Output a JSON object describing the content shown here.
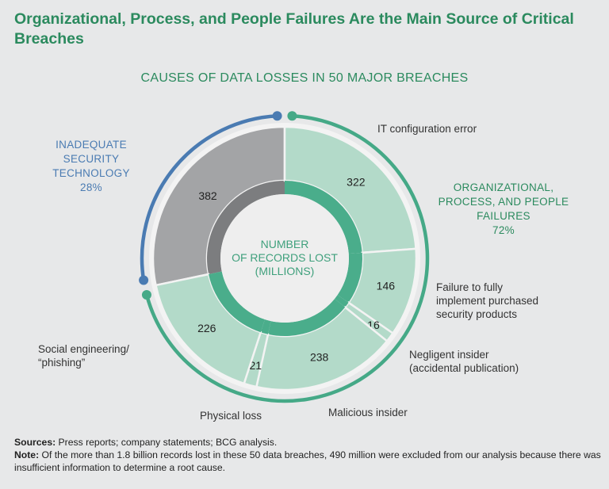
{
  "title": "Organizational, Process, and People Failures Are the Main Source of Critical Breaches",
  "colors": {
    "gray": "#a3a4a6",
    "gray_dark": "#7c7d7f",
    "green_light": "#b3dac9",
    "green_ring": "#4aad8b",
    "blue": "#4a7bb2",
    "green_arc": "#45a987",
    "bg": "#e7e8e9"
  },
  "chart_data": {
    "type": "pie",
    "title": "CAUSES OF DATA LOSSES IN 50 MAJOR BREACHES",
    "center_label": [
      "NUMBER",
      "OF RECORDS LOST",
      "(MILLIONS)"
    ],
    "unit": "millions of records",
    "slices": [
      {
        "label": "Inadequate security technology",
        "value": 382,
        "group": "tech"
      },
      {
        "label": "IT configuration error",
        "value": 322,
        "group": "org"
      },
      {
        "label": "Failure to fully implement purchased security products",
        "value": 146,
        "group": "org"
      },
      {
        "label": "Negligent insider (accidental publication)",
        "value": 16,
        "group": "org"
      },
      {
        "label": "Malicious insider",
        "value": 238,
        "group": "org"
      },
      {
        "label": "Physical loss",
        "value": 21,
        "group": "org"
      },
      {
        "label": "Social engineering/ “phishing”",
        "value": 226,
        "group": "org"
      }
    ],
    "groups": [
      {
        "id": "tech",
        "label": [
          "INADEQUATE",
          "SECURITY",
          "TECHNOLOGY"
        ],
        "percent": "28%"
      },
      {
        "id": "org",
        "label": [
          "ORGANIZATIONAL,",
          "PROCESS, AND PEOPLE",
          "FAILURES"
        ],
        "percent": "72%"
      }
    ]
  },
  "labels": {
    "it_config": "IT configuration error",
    "failure_impl": [
      "Failure to fully",
      "implement purchased",
      "security products"
    ],
    "negligent": [
      "Negligent insider",
      "(accidental publication)"
    ],
    "malicious": "Malicious insider",
    "physical": "Physical loss",
    "social": [
      "Social engineering/",
      "“phishing”"
    ]
  },
  "notes": {
    "sources_label": "Sources:",
    "sources": "Press reports; company statements; BCG analysis.",
    "note_label": "Note:",
    "note": "Of the more than 1.8 billion records lost in these 50 data breaches, 490 million were excluded from our analysis because there was insufficient information to determine a root cause."
  }
}
